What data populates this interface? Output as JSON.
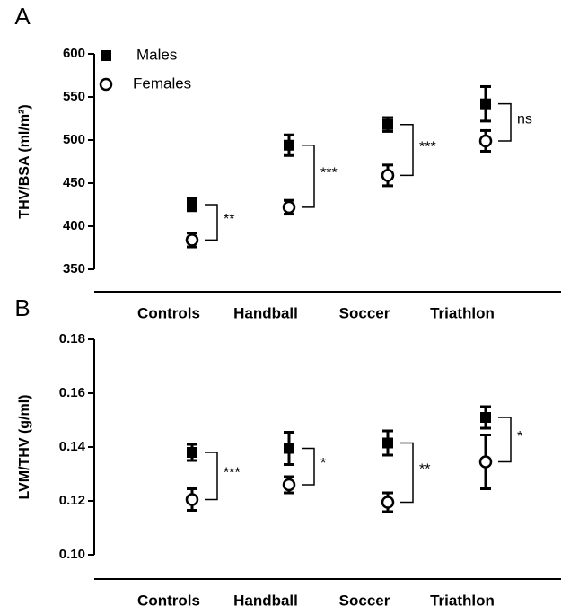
{
  "chart_data": [
    {
      "type": "errorbar",
      "panel": "A",
      "y_label": "THV/BSA (ml/m²)",
      "categories": [
        "Controls",
        "Handball",
        "Soccer",
        "Triathlon"
      ],
      "series": [
        {
          "name": "Males",
          "marker": "square",
          "color": "#000000",
          "values": [
            425,
            494,
            518,
            542
          ],
          "errors": [
            7,
            12,
            8,
            20
          ]
        },
        {
          "name": "Females",
          "marker": "circle",
          "color": "#000000",
          "values": [
            384,
            422,
            459,
            499
          ],
          "errors": [
            8,
            8,
            12,
            12
          ]
        }
      ],
      "significance": [
        "**",
        "***",
        "***",
        "ns"
      ],
      "ylim": [
        350,
        600
      ],
      "yticks": [
        350,
        400,
        450,
        500,
        550,
        600
      ]
    },
    {
      "type": "errorbar",
      "panel": "B",
      "y_label": "LVM/THV (g/ml)",
      "categories": [
        "Controls",
        "Handball",
        "Soccer",
        "Triathlon"
      ],
      "series": [
        {
          "name": "Males",
          "marker": "square",
          "color": "#000000",
          "values": [
            0.138,
            0.1395,
            0.1415,
            0.151
          ],
          "errors": [
            0.003,
            0.006,
            0.0045,
            0.004
          ]
        },
        {
          "name": "Females",
          "marker": "circle",
          "color": "#000000",
          "values": [
            0.1205,
            0.126,
            0.1195,
            0.1345
          ],
          "errors": [
            0.004,
            0.003,
            0.0035,
            0.01
          ]
        }
      ],
      "significance": [
        "***",
        "*",
        "**",
        "*"
      ],
      "ylim": [
        0.1,
        0.18
      ],
      "yticks": [
        {
          "value": 0.1,
          "label": "0.10"
        },
        0.12,
        0.14,
        0.16,
        0.18
      ]
    }
  ]
}
